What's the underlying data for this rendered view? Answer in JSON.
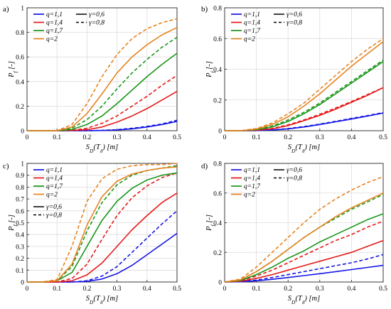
{
  "colors": {
    "blue": "#1414e6",
    "red": "#e61919",
    "green": "#199619",
    "orange": "#e6821e"
  },
  "series_defs": [
    {
      "label": "q=1,1",
      "color": "blue"
    },
    {
      "label": "q=1,4",
      "color": "red"
    },
    {
      "label": "q=1,7",
      "color": "green"
    },
    {
      "label": "q=2",
      "color": "orange"
    }
  ],
  "gamma_defs": [
    {
      "label": "γ=0,6",
      "dash": "solid"
    },
    {
      "label": "γ=0,8",
      "dash": "dashed"
    }
  ],
  "chart_data": [
    {
      "panel": "a)",
      "type": "line",
      "xlabel": "S_D(T_δ) [m]",
      "ylabel": "P_f [-]",
      "xlim": [
        0,
        0.5
      ],
      "ylim": [
        0,
        1
      ],
      "xticks": [
        "0",
        "0.1",
        "0.2",
        "0.3",
        "0.4",
        "0.5"
      ],
      "yticks": [
        "0",
        "0.2",
        "0.4",
        "0.6",
        "0.8",
        "1"
      ],
      "grid": true,
      "legend_layout": "two-column",
      "x": [
        0,
        0.05,
        0.1,
        0.15,
        0.2,
        0.25,
        0.3,
        0.35,
        0.4,
        0.45,
        0.5
      ],
      "series": [
        {
          "q": "q=1,1",
          "gamma": "γ=0,6",
          "values": [
            0,
            0,
            0,
            0,
            0,
            0.002,
            0.006,
            0.015,
            0.03,
            0.05,
            0.075
          ]
        },
        {
          "q": "q=1,1",
          "gamma": "γ=0,8",
          "values": [
            0,
            0,
            0,
            0,
            0,
            0.003,
            0.008,
            0.02,
            0.035,
            0.055,
            0.085
          ]
        },
        {
          "q": "q=1,4",
          "gamma": "γ=0,6",
          "values": [
            0,
            0,
            0,
            0.002,
            0.008,
            0.03,
            0.07,
            0.12,
            0.18,
            0.25,
            0.32
          ]
        },
        {
          "q": "q=1,4",
          "gamma": "γ=0,8",
          "values": [
            0,
            0,
            0,
            0.003,
            0.02,
            0.06,
            0.12,
            0.2,
            0.28,
            0.37,
            0.45
          ]
        },
        {
          "q": "q=1,7",
          "gamma": "γ=0,6",
          "values": [
            0,
            0,
            0,
            0.01,
            0.05,
            0.12,
            0.22,
            0.33,
            0.44,
            0.54,
            0.63
          ]
        },
        {
          "q": "q=1,7",
          "gamma": "γ=0,8",
          "values": [
            0,
            0,
            0,
            0.02,
            0.09,
            0.2,
            0.34,
            0.47,
            0.58,
            0.68,
            0.76
          ]
        },
        {
          "q": "q=2",
          "gamma": "γ=0,6",
          "values": [
            0,
            0,
            0,
            0.03,
            0.14,
            0.3,
            0.47,
            0.6,
            0.7,
            0.78,
            0.84
          ]
        },
        {
          "q": "q=2",
          "gamma": "γ=0,8",
          "values": [
            0,
            0,
            0,
            0.05,
            0.22,
            0.44,
            0.62,
            0.75,
            0.83,
            0.88,
            0.91
          ]
        }
      ]
    },
    {
      "panel": "b)",
      "type": "line",
      "xlabel": "S_D(T_δ) [m]",
      "ylabel": "P_f [-]",
      "xlim": [
        0,
        0.5
      ],
      "ylim": [
        0,
        0.8
      ],
      "xticks": [
        "0",
        "0.1",
        "0.2",
        "0.3",
        "0.4",
        "0.5"
      ],
      "yticks": [
        "0",
        "0.2",
        "0.4",
        "0.6",
        "0.8"
      ],
      "grid": true,
      "legend_layout": "two-column",
      "x": [
        0,
        0.05,
        0.1,
        0.15,
        0.2,
        0.25,
        0.3,
        0.35,
        0.4,
        0.45,
        0.5
      ],
      "series": [
        {
          "q": "q=1,1",
          "gamma": "γ=0,6",
          "values": [
            0,
            0,
            0.001,
            0.004,
            0.012,
            0.024,
            0.04,
            0.058,
            0.076,
            0.095,
            0.115
          ]
        },
        {
          "q": "q=1,1",
          "gamma": "γ=0,8",
          "values": [
            0,
            0,
            0.001,
            0.005,
            0.014,
            0.027,
            0.043,
            0.061,
            0.08,
            0.098,
            0.118
          ]
        },
        {
          "q": "q=1,4",
          "gamma": "γ=0,6",
          "values": [
            0,
            0,
            0.003,
            0.012,
            0.033,
            0.065,
            0.1,
            0.14,
            0.185,
            0.23,
            0.28
          ]
        },
        {
          "q": "q=1,4",
          "gamma": "γ=0,8",
          "values": [
            0,
            0,
            0.004,
            0.015,
            0.038,
            0.07,
            0.107,
            0.148,
            0.19,
            0.235,
            0.28
          ]
        },
        {
          "q": "q=1,7",
          "gamma": "γ=0,6",
          "values": [
            0,
            0,
            0.006,
            0.025,
            0.06,
            0.11,
            0.17,
            0.24,
            0.31,
            0.38,
            0.45
          ]
        },
        {
          "q": "q=1,7",
          "gamma": "γ=0,8",
          "values": [
            0,
            0,
            0.008,
            0.03,
            0.07,
            0.12,
            0.18,
            0.25,
            0.32,
            0.39,
            0.46
          ]
        },
        {
          "q": "q=2",
          "gamma": "γ=0,6",
          "values": [
            0,
            0,
            0.01,
            0.04,
            0.09,
            0.16,
            0.24,
            0.33,
            0.42,
            0.5,
            0.58
          ]
        },
        {
          "q": "q=2",
          "gamma": "γ=0,8",
          "values": [
            0,
            0,
            0.014,
            0.05,
            0.11,
            0.18,
            0.27,
            0.36,
            0.45,
            0.53,
            0.6
          ]
        }
      ]
    },
    {
      "panel": "c)",
      "type": "line",
      "xlabel": "S_D(T_δ) [m]",
      "ylabel": "P_f [-]",
      "xlim": [
        0,
        0.5
      ],
      "ylim": [
        0,
        1
      ],
      "xticks": [
        "0",
        "0.1",
        "0.2",
        "0.3",
        "0.4",
        "0.5"
      ],
      "yticks": [
        "0",
        "0.1",
        "0.2",
        "0.3",
        "0.4",
        "0.5",
        "0.6",
        "0.7",
        "0.8",
        "0.9",
        "1"
      ],
      "grid": true,
      "legend_layout": "stacked",
      "x": [
        0,
        0.05,
        0.1,
        0.15,
        0.2,
        0.25,
        0.3,
        0.35,
        0.4,
        0.45,
        0.5
      ],
      "series": [
        {
          "q": "q=1,1",
          "gamma": "γ=0,6",
          "values": [
            0,
            0,
            0,
            0,
            0.005,
            0.025,
            0.07,
            0.14,
            0.23,
            0.32,
            0.41
          ]
        },
        {
          "q": "q=1,1",
          "gamma": "γ=0,8",
          "values": [
            0,
            0,
            0,
            0,
            0.01,
            0.05,
            0.13,
            0.25,
            0.37,
            0.49,
            0.6
          ]
        },
        {
          "q": "q=1,4",
          "gamma": "γ=0,6",
          "values": [
            0,
            0,
            0,
            0.01,
            0.06,
            0.16,
            0.3,
            0.44,
            0.56,
            0.67,
            0.75
          ]
        },
        {
          "q": "q=1,4",
          "gamma": "γ=0,8",
          "values": [
            0,
            0,
            0,
            0.03,
            0.15,
            0.36,
            0.56,
            0.71,
            0.81,
            0.88,
            0.92
          ]
        },
        {
          "q": "q=1,7",
          "gamma": "γ=0,6",
          "values": [
            0,
            0,
            0.01,
            0.08,
            0.3,
            0.52,
            0.68,
            0.79,
            0.86,
            0.9,
            0.92
          ]
        },
        {
          "q": "q=1,7",
          "gamma": "γ=0,8",
          "values": [
            0,
            0,
            0.01,
            0.13,
            0.43,
            0.67,
            0.82,
            0.9,
            0.94,
            0.96,
            0.98
          ]
        },
        {
          "q": "q=2",
          "gamma": "γ=0,6",
          "values": [
            0,
            0,
            0.01,
            0.15,
            0.48,
            0.72,
            0.85,
            0.91,
            0.94,
            0.96,
            0.97
          ]
        },
        {
          "q": "q=2",
          "gamma": "γ=0,8",
          "values": [
            0,
            0,
            0.02,
            0.3,
            0.68,
            0.87,
            0.95,
            0.98,
            0.99,
            0.99,
            1
          ]
        }
      ]
    },
    {
      "panel": "d)",
      "type": "line",
      "xlabel": "S_D(T_δ) [m]",
      "ylabel": "P_f [-]",
      "xlim": [
        0,
        0.5
      ],
      "ylim": [
        0,
        0.8
      ],
      "xticks": [
        "0",
        "0.1",
        "0.2",
        "0.3",
        "0.4",
        "0.5"
      ],
      "yticks": [
        "0",
        "0.2",
        "0.4",
        "0.6",
        "0.8"
      ],
      "grid": true,
      "legend_layout": "two-column",
      "x": [
        0,
        0.05,
        0.1,
        0.15,
        0.2,
        0.25,
        0.3,
        0.35,
        0.4,
        0.45,
        0.5
      ],
      "series": [
        {
          "q": "q=1,1",
          "gamma": "γ=0,6",
          "values": [
            0,
            0.002,
            0.008,
            0.018,
            0.03,
            0.043,
            0.056,
            0.07,
            0.084,
            0.098,
            0.112
          ]
        },
        {
          "q": "q=1,1",
          "gamma": "γ=0,8",
          "values": [
            0,
            0.003,
            0.013,
            0.03,
            0.05,
            0.07,
            0.09,
            0.11,
            0.13,
            0.155,
            0.185
          ]
        },
        {
          "q": "q=1,4",
          "gamma": "γ=0,6",
          "values": [
            0,
            0.005,
            0.025,
            0.05,
            0.08,
            0.11,
            0.14,
            0.17,
            0.2,
            0.24,
            0.28
          ]
        },
        {
          "q": "q=1,4",
          "gamma": "γ=0,8",
          "values": [
            0,
            0.008,
            0.04,
            0.08,
            0.13,
            0.18,
            0.23,
            0.28,
            0.32,
            0.37,
            0.41
          ]
        },
        {
          "q": "q=1,7",
          "gamma": "γ=0,6",
          "values": [
            0,
            0.01,
            0.05,
            0.1,
            0.16,
            0.21,
            0.27,
            0.32,
            0.37,
            0.42,
            0.46
          ]
        },
        {
          "q": "q=1,7",
          "gamma": "γ=0,8",
          "values": [
            0,
            0.015,
            0.07,
            0.14,
            0.22,
            0.3,
            0.37,
            0.43,
            0.49,
            0.54,
            0.59
          ]
        },
        {
          "q": "q=2",
          "gamma": "γ=0,6",
          "values": [
            0,
            0.015,
            0.07,
            0.14,
            0.22,
            0.3,
            0.37,
            0.44,
            0.5,
            0.55,
            0.6
          ]
        },
        {
          "q": "q=2",
          "gamma": "γ=0,8",
          "values": [
            0,
            0.02,
            0.1,
            0.2,
            0.3,
            0.4,
            0.49,
            0.56,
            0.62,
            0.67,
            0.71
          ]
        }
      ]
    }
  ]
}
